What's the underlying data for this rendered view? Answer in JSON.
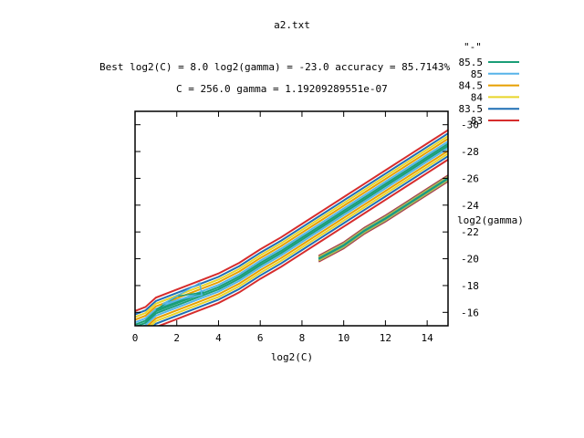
{
  "window": {
    "title": "a2.txt"
  },
  "subtitle_lines": [
    "Best log2(C) = 8.0  log2(gamma) = -23.0  accuracy = 85.7143%",
    "C = 256.0  gamma = 1.19209289551e-07"
  ],
  "chart_data": {
    "type": "contour",
    "title": "a2.txt",
    "xlabel": "log2(C)",
    "ylabel": "log2(gamma)",
    "xlim": [
      0,
      15
    ],
    "ylim": [
      -15,
      -31
    ],
    "x_ticks": [
      0,
      2,
      4,
      6,
      8,
      10,
      12,
      14
    ],
    "y_ticks": [
      -16,
      -18,
      -20,
      -22,
      -24,
      -26,
      -28,
      -30
    ],
    "grid": false,
    "legend_title": "\"-\"",
    "legend_position": "top-right",
    "series": [
      {
        "name": "85.5",
        "color": "#1a9e77"
      },
      {
        "name": "85",
        "color": "#56b4e9"
      },
      {
        "name": "84.5",
        "color": "#e69f00"
      },
      {
        "name": "84",
        "color": "#e8d52a"
      },
      {
        "name": "83.5",
        "color": "#1f6fb4"
      },
      {
        "name": "83",
        "color": "#d62d2d"
      }
    ],
    "bands": [
      {
        "name": "upper",
        "center": [
          [
            0,
            -15.0
          ],
          [
            0.5,
            -15.3
          ],
          [
            1,
            -16.0
          ],
          [
            2,
            -16.6
          ],
          [
            3,
            -17.2
          ],
          [
            4,
            -17.8
          ],
          [
            5,
            -18.6
          ],
          [
            6,
            -19.6
          ],
          [
            7,
            -20.5
          ],
          [
            8,
            -21.5
          ],
          [
            9,
            -22.5
          ],
          [
            10,
            -23.5
          ],
          [
            11,
            -24.5
          ],
          [
            12,
            -25.5
          ],
          [
            13,
            -26.5
          ],
          [
            14,
            -27.5
          ],
          [
            15,
            -28.5
          ]
        ]
      },
      {
        "name": "lower",
        "center": [
          [
            8.8,
            -20.0
          ],
          [
            10,
            -21.0
          ],
          [
            11,
            -22.1
          ],
          [
            12,
            -23.0
          ],
          [
            13,
            -24.0
          ],
          [
            14,
            -25.0
          ],
          [
            15,
            -26.0
          ]
        ]
      }
    ],
    "inner_loops": [
      [
        [
          1.0,
          -16.2
        ],
        [
          3.3,
          -17.5
        ],
        [
          2.0,
          -17.2
        ],
        [
          1.0,
          -16.2
        ]
      ],
      [
        [
          1.3,
          -16.6
        ],
        [
          3.1,
          -18.2
        ],
        [
          3.2,
          -17.3
        ],
        [
          2.2,
          -17.0
        ],
        [
          1.3,
          -16.6
        ]
      ]
    ]
  }
}
